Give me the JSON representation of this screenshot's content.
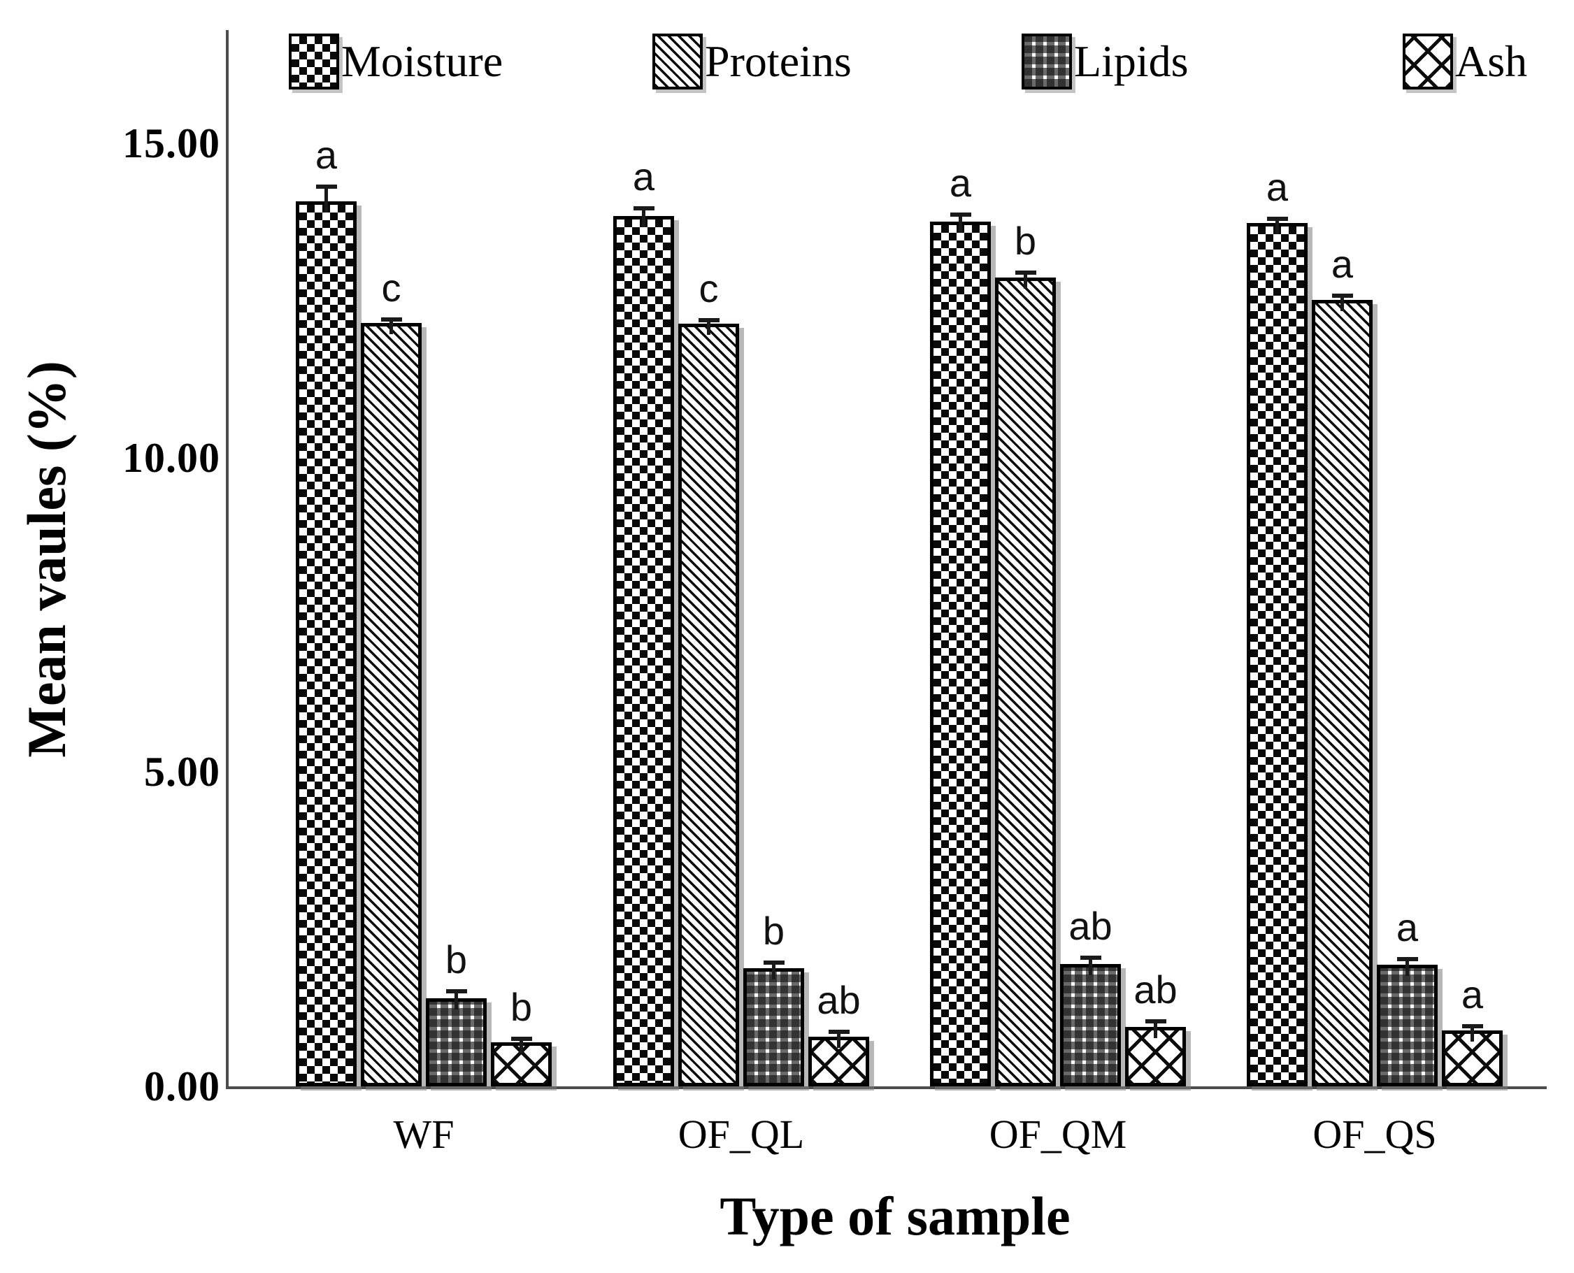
{
  "figure": {
    "background": "#ffffff",
    "axis_color": "#4d4d4d",
    "bar_outline_color": "#000000",
    "shadow_color": "#7d7d7d"
  },
  "chart_data": {
    "type": "bar",
    "title": "",
    "xlabel": "Type of sample",
    "ylabel": "Mean vaules (%)",
    "ylim": [
      0,
      15.75
    ],
    "yticks": [
      0,
      5,
      10,
      15
    ],
    "ytick_labels": [
      "0.00",
      "5.00",
      "10.00",
      "15.00"
    ],
    "categories": [
      "WF",
      "OF_QL",
      "OF_QM",
      "OF_QS"
    ],
    "series": [
      {
        "name": "Moisture",
        "pattern": "checkerboard",
        "values": [
          14.08,
          13.84,
          13.76,
          13.73
        ],
        "errors": [
          0.22,
          0.12,
          0.1,
          0.06
        ],
        "letters": [
          "a",
          "a",
          "a",
          "a"
        ]
      },
      {
        "name": "Proteins",
        "pattern": "diagonal-stripes",
        "values": [
          12.14,
          12.13,
          12.87,
          12.51
        ],
        "errors": [
          0.05,
          0.05,
          0.06,
          0.05
        ],
        "letters": [
          "c",
          "c",
          "b",
          "a"
        ]
      },
      {
        "name": "Lipids",
        "pattern": "plaid",
        "values": [
          1.4,
          1.88,
          1.95,
          1.93
        ],
        "errors": [
          0.1,
          0.08,
          0.08,
          0.08
        ],
        "letters": [
          "b",
          "b",
          "ab",
          "a"
        ]
      },
      {
        "name": "Ash",
        "pattern": "diamond-crosshatch",
        "values": [
          0.7,
          0.79,
          0.95,
          0.89
        ],
        "errors": [
          0.05,
          0.07,
          0.07,
          0.06
        ],
        "letters": [
          "b",
          "ab",
          "ab",
          "a"
        ]
      }
    ],
    "legend_position": "top",
    "grid": false,
    "error_bars": true
  }
}
